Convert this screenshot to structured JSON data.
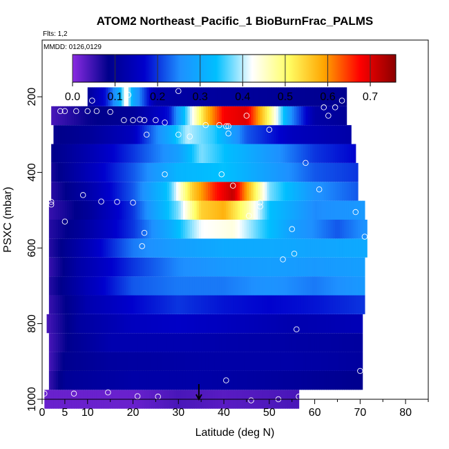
{
  "chart_data": {
    "type": "heatmap",
    "title": "ATOM2 Northeast_Pacific_1 BioBurnFrac_PALMS",
    "note_flights": "Flts: 1,2",
    "note_dates": "MMDD: 0126,0129",
    "xlabel": "Latitude (deg N)",
    "ylabel": "PSXC (mbar)",
    "xlim": [
      0,
      85
    ],
    "ylim": [
      1000,
      50
    ],
    "x_ticks": [
      0,
      5,
      10,
      20,
      30,
      40,
      50,
      60,
      70,
      80
    ],
    "x_tick_labels": [
      "0",
      "5",
      "10",
      "20",
      "30",
      "40",
      "50",
      "60",
      "70",
      "80"
    ],
    "y_ticks": [
      200,
      400,
      600,
      800,
      1000
    ],
    "y_tick_labels": [
      "200",
      "400",
      "600",
      "800",
      "1000"
    ],
    "colorbar": {
      "range": [
        0,
        0.76
      ],
      "ticks": [
        0.0,
        0.1,
        0.2,
        0.3,
        0.4,
        0.5,
        0.6,
        0.7
      ],
      "tick_labels": [
        "0.0",
        "0.1",
        "0.2",
        "0.3",
        "0.4",
        "0.5",
        "0.6",
        "0.7"
      ],
      "colors": [
        "#8a2be2",
        "#00008b",
        "#0000cd",
        "#1e90ff",
        "#00bfff",
        "#ffffff",
        "#ffff66",
        "#ffa500",
        "#ff0000",
        "#8b0000"
      ]
    },
    "marker_latitude": 34.5,
    "bands": [
      {
        "p": 1000,
        "lat_min": 0.5,
        "lat_max": 56.5,
        "nodes": [
          [
            0.5,
            0.02
          ],
          [
            20,
            0.02
          ],
          [
            30,
            0.04
          ],
          [
            40,
            0.03
          ],
          [
            56,
            0.04
          ]
        ]
      },
      {
        "p": 950,
        "lat_min": 1.5,
        "lat_max": 70.5,
        "nodes": [
          [
            1.5,
            0.05
          ],
          [
            5,
            0.1
          ],
          [
            20,
            0.12
          ],
          [
            35,
            0.12
          ],
          [
            50,
            0.11
          ],
          [
            70,
            0.09
          ]
        ]
      },
      {
        "p": 900,
        "lat_min": 1.5,
        "lat_max": 70.5,
        "nodes": [
          [
            1.5,
            0.04
          ],
          [
            5,
            0.09
          ],
          [
            15,
            0.11
          ],
          [
            35,
            0.12
          ],
          [
            55,
            0.12
          ],
          [
            70,
            0.11
          ]
        ]
      },
      {
        "p": 850,
        "lat_min": 1.5,
        "lat_max": 70.5,
        "nodes": [
          [
            1.5,
            0.04
          ],
          [
            6,
            0.09
          ],
          [
            15,
            0.13
          ],
          [
            30,
            0.13
          ],
          [
            50,
            0.12
          ],
          [
            70,
            0.11
          ]
        ]
      },
      {
        "p": 800,
        "lat_min": 1.0,
        "lat_max": 70.5,
        "nodes": [
          [
            1,
            0.04
          ],
          [
            8,
            0.11
          ],
          [
            20,
            0.15
          ],
          [
            30,
            0.16
          ],
          [
            40,
            0.15
          ],
          [
            55,
            0.13
          ],
          [
            70,
            0.14
          ]
        ]
      },
      {
        "p": 750,
        "lat_min": 1.5,
        "lat_max": 71.0,
        "nodes": [
          [
            1.5,
            0.05
          ],
          [
            10,
            0.13
          ],
          [
            20,
            0.17
          ],
          [
            30,
            0.2
          ],
          [
            40,
            0.18
          ],
          [
            50,
            0.17
          ],
          [
            60,
            0.18
          ],
          [
            71,
            0.2
          ]
        ]
      },
      {
        "p": 700,
        "lat_min": 1.5,
        "lat_max": 71.0,
        "nodes": [
          [
            1.5,
            0.06
          ],
          [
            10,
            0.14
          ],
          [
            20,
            0.22
          ],
          [
            30,
            0.24
          ],
          [
            40,
            0.24
          ],
          [
            50,
            0.26
          ],
          [
            60,
            0.24
          ],
          [
            71,
            0.27
          ]
        ]
      },
      {
        "p": 650,
        "lat_min": 1.5,
        "lat_max": 71.0,
        "nodes": [
          [
            1.5,
            0.05
          ],
          [
            8,
            0.12
          ],
          [
            20,
            0.2
          ],
          [
            30,
            0.25
          ],
          [
            40,
            0.27
          ],
          [
            50,
            0.28
          ],
          [
            60,
            0.27
          ],
          [
            71,
            0.28
          ]
        ]
      },
      {
        "p": 600,
        "lat_min": 1.5,
        "lat_max": 71.5,
        "nodes": [
          [
            1.5,
            0.06
          ],
          [
            8,
            0.12
          ],
          [
            20,
            0.24
          ],
          [
            30,
            0.28
          ],
          [
            40,
            0.3
          ],
          [
            50,
            0.3
          ],
          [
            60,
            0.29
          ],
          [
            71.5,
            0.3
          ]
        ]
      },
      {
        "p": 550,
        "lat_min": 1.5,
        "lat_max": 71.5,
        "nodes": [
          [
            1.5,
            0.06
          ],
          [
            8,
            0.1
          ],
          [
            20,
            0.2
          ],
          [
            28,
            0.3
          ],
          [
            35,
            0.42
          ],
          [
            42,
            0.44
          ],
          [
            48,
            0.36
          ],
          [
            55,
            0.28
          ],
          [
            65,
            0.22
          ],
          [
            71.5,
            0.26
          ]
        ]
      },
      {
        "p": 500,
        "lat_min": 1.5,
        "lat_max": 71.0,
        "nodes": [
          [
            1.5,
            0.05
          ],
          [
            10,
            0.1
          ],
          [
            20,
            0.2
          ],
          [
            30,
            0.38
          ],
          [
            35,
            0.55
          ],
          [
            40,
            0.58
          ],
          [
            45,
            0.48
          ],
          [
            50,
            0.34
          ],
          [
            60,
            0.25
          ],
          [
            71,
            0.27
          ]
        ]
      },
      {
        "p": 450,
        "lat_min": 2.0,
        "lat_max": 69.5,
        "nodes": [
          [
            2,
            0.06
          ],
          [
            10,
            0.12
          ],
          [
            20,
            0.22
          ],
          [
            28,
            0.35
          ],
          [
            33,
            0.55
          ],
          [
            38,
            0.66
          ],
          [
            42,
            0.72
          ],
          [
            46,
            0.55
          ],
          [
            50,
            0.38
          ],
          [
            60,
            0.26
          ],
          [
            69.5,
            0.22
          ]
        ]
      },
      {
        "p": 400,
        "lat_min": 2.0,
        "lat_max": 69.5,
        "nodes": [
          [
            2,
            0.07
          ],
          [
            10,
            0.14
          ],
          [
            20,
            0.22
          ],
          [
            30,
            0.32
          ],
          [
            40,
            0.34
          ],
          [
            50,
            0.28
          ],
          [
            60,
            0.22
          ],
          [
            69.5,
            0.2
          ]
        ]
      },
      {
        "p": 350,
        "lat_min": 2.0,
        "lat_max": 69.0,
        "nodes": [
          [
            2,
            0.08
          ],
          [
            10,
            0.13
          ],
          [
            20,
            0.2
          ],
          [
            30,
            0.28
          ],
          [
            35,
            0.38
          ],
          [
            40,
            0.34
          ],
          [
            50,
            0.27
          ],
          [
            60,
            0.2
          ],
          [
            69,
            0.17
          ]
        ]
      },
      {
        "p": 300,
        "lat_min": 2.5,
        "lat_max": 68.0,
        "nodes": [
          [
            2.5,
            0.08
          ],
          [
            10,
            0.1
          ],
          [
            20,
            0.15
          ],
          [
            28,
            0.3
          ],
          [
            32,
            0.4
          ],
          [
            38,
            0.35
          ],
          [
            45,
            0.22
          ],
          [
            55,
            0.15
          ],
          [
            68,
            0.12
          ]
        ]
      },
      {
        "p": 250,
        "lat_min": 2.0,
        "lat_max": 67.0,
        "nodes": [
          [
            2,
            0.04
          ],
          [
            10,
            0.08
          ],
          [
            20,
            0.1
          ],
          [
            28,
            0.18
          ],
          [
            33,
            0.42
          ],
          [
            36,
            0.56
          ],
          [
            40,
            0.68
          ],
          [
            45,
            0.7
          ],
          [
            50,
            0.5
          ],
          [
            55,
            0.25
          ],
          [
            60,
            0.12
          ],
          [
            67,
            0.1
          ]
        ]
      },
      {
        "p": 200,
        "lat_min": 10.0,
        "lat_max": 67.0,
        "nodes": [
          [
            10,
            0.1
          ],
          [
            14,
            0.18
          ],
          [
            17,
            0.3
          ],
          [
            18.5,
            0.45
          ],
          [
            20,
            0.3
          ],
          [
            25,
            0.12
          ],
          [
            35,
            0.11
          ],
          [
            50,
            0.1
          ],
          [
            67,
            0.09
          ]
        ]
      }
    ],
    "points": [
      [
        0.5,
        985
      ],
      [
        7,
        985
      ],
      [
        14.5,
        982
      ],
      [
        21,
        992
      ],
      [
        25.5,
        993
      ],
      [
        46,
        1003
      ],
      [
        52,
        1000
      ],
      [
        56.5,
        993
      ],
      [
        40.5,
        950
      ],
      [
        70,
        925
      ],
      [
        56,
        815
      ],
      [
        5,
        530
      ],
      [
        22.5,
        560
      ],
      [
        55,
        550
      ],
      [
        22,
        595
      ],
      [
        53,
        630
      ],
      [
        55.5,
        615
      ],
      [
        71,
        570
      ],
      [
        2,
        485
      ],
      [
        2,
        478
      ],
      [
        13,
        477
      ],
      [
        16.5,
        478
      ],
      [
        20,
        480
      ],
      [
        48,
        480
      ],
      [
        48,
        490
      ],
      [
        45.5,
        515
      ],
      [
        69,
        505
      ],
      [
        9,
        460
      ],
      [
        42,
        435
      ],
      [
        61,
        445
      ],
      [
        27,
        405
      ],
      [
        39.5,
        405
      ],
      [
        58,
        375
      ],
      [
        23,
        300
      ],
      [
        30,
        300
      ],
      [
        32.5,
        305
      ],
      [
        36,
        275
      ],
      [
        39,
        275
      ],
      [
        41,
        278
      ],
      [
        41,
        297
      ],
      [
        50,
        287
      ],
      [
        21.5,
        260
      ],
      [
        40.5,
        278
      ],
      [
        4,
        238
      ],
      [
        5,
        238
      ],
      [
        7.5,
        238
      ],
      [
        10,
        238
      ],
      [
        12,
        238
      ],
      [
        15,
        240
      ],
      [
        18,
        262
      ],
      [
        20,
        262
      ],
      [
        22.5,
        262
      ],
      [
        25,
        262
      ],
      [
        27,
        268
      ],
      [
        45,
        250
      ],
      [
        62,
        228
      ],
      [
        63,
        250
      ],
      [
        64.5,
        228
      ],
      [
        66,
        210
      ],
      [
        11,
        210
      ],
      [
        30,
        185
      ],
      [
        19,
        195
      ]
    ]
  }
}
